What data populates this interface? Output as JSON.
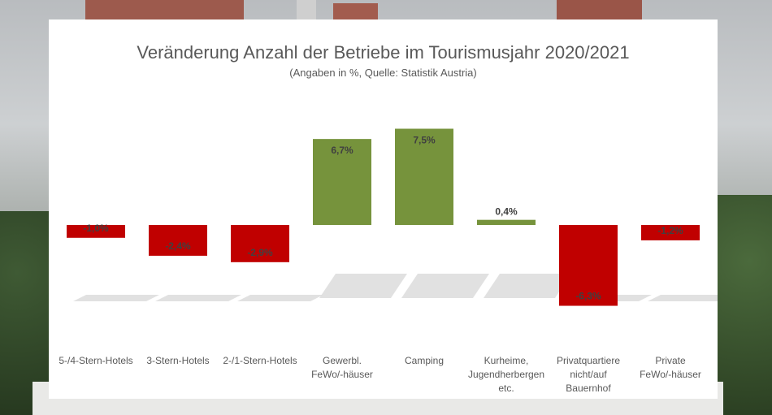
{
  "chart_data": {
    "type": "bar",
    "title": "Veränderung Anzahl der Betriebe im Tourismusjahr 2020/2021",
    "subtitle": "(Angaben in %, Quelle: Statistik Austria)",
    "categories": [
      "5-/4-Stern-Hotels",
      "3-Stern-Hotels",
      "2-/1-Stern-Hotels",
      "Gewerbl. FeWo/-häuser",
      "Camping",
      "Kurheime, Jugendherbergen etc.",
      "Privatquartiere nicht/auf Bauernhof",
      "Private FeWo/-häuser"
    ],
    "category_lines": [
      [
        "5-/4-Stern-Hotels"
      ],
      [
        "3-Stern-Hotels"
      ],
      [
        "2-/1-Stern-Hotels"
      ],
      [
        "Gewerbl.",
        "FeWo/-häuser"
      ],
      [
        "Camping"
      ],
      [
        "Kurheime,",
        "Jugendherbergen",
        "etc."
      ],
      [
        "Privatquartiere",
        "nicht/auf",
        "Bauernhof"
      ],
      [
        "Private",
        "FeWo/-häuser"
      ]
    ],
    "values": [
      -1.0,
      -2.4,
      -2.9,
      6.7,
      7.5,
      0.4,
      -6.3,
      -1.2
    ],
    "data_labels": [
      "-1,0%",
      "-2,4%",
      "-2,9%",
      "6,7%",
      "7,5%",
      "0,4%",
      "-6,3%",
      "-1,2%"
    ],
    "ylim": [
      -6.3,
      7.5
    ],
    "grid": false,
    "colors": {
      "positive": "#76933c",
      "negative": "#c00000",
      "label_text": "#404040"
    }
  }
}
